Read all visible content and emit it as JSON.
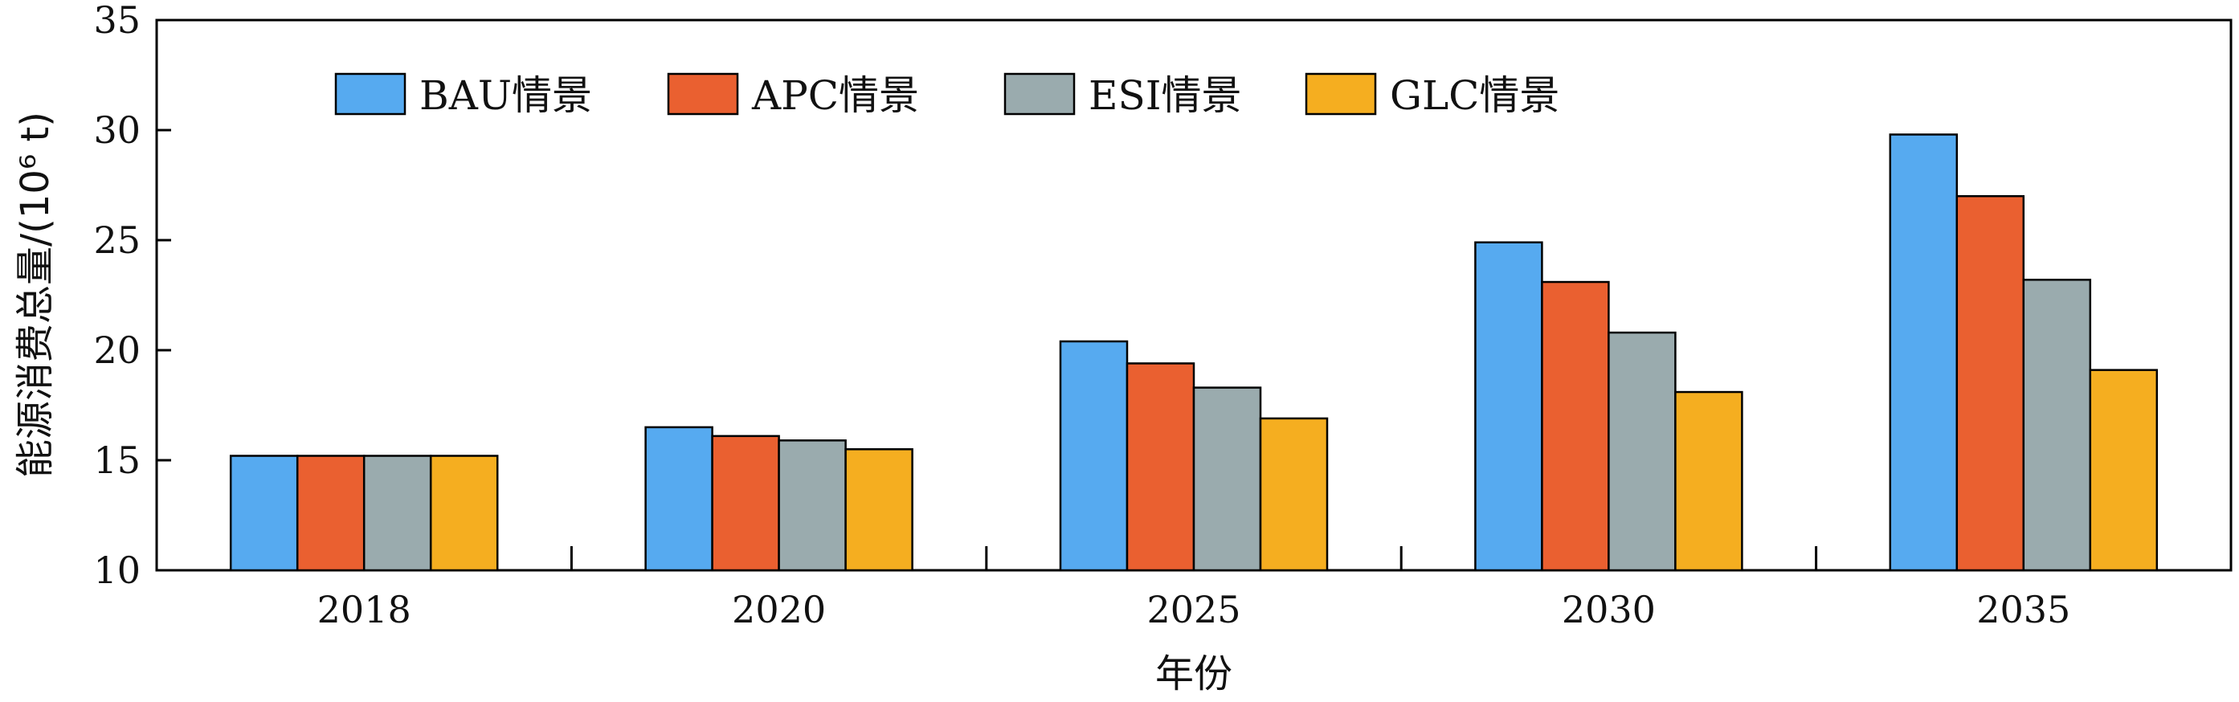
{
  "chart_data": {
    "type": "bar",
    "categories": [
      "2018",
      "2020",
      "2025",
      "2030",
      "2035"
    ],
    "series": [
      {
        "name": "BAU情景",
        "values": [
          15.2,
          16.5,
          20.4,
          24.9,
          29.8
        ],
        "color": "#56aaf0"
      },
      {
        "name": "APC情景",
        "values": [
          15.2,
          16.1,
          19.4,
          23.1,
          27.0
        ],
        "color": "#ea6030"
      },
      {
        "name": "ESI情景",
        "values": [
          15.2,
          15.9,
          18.3,
          20.8,
          23.2
        ],
        "color": "#9aabae"
      },
      {
        "name": "GLC情景",
        "values": [
          15.2,
          15.5,
          16.9,
          18.1,
          19.1
        ],
        "color": "#f5ae20"
      }
    ],
    "title": "",
    "xlabel": "年份",
    "ylabel": "能源消费总量/(10⁶ t)",
    "ylim": [
      10,
      35
    ],
    "yticks": [
      "10",
      "15",
      "20",
      "25",
      "30",
      "35"
    ],
    "grid": false,
    "legend_position": "top-left"
  }
}
